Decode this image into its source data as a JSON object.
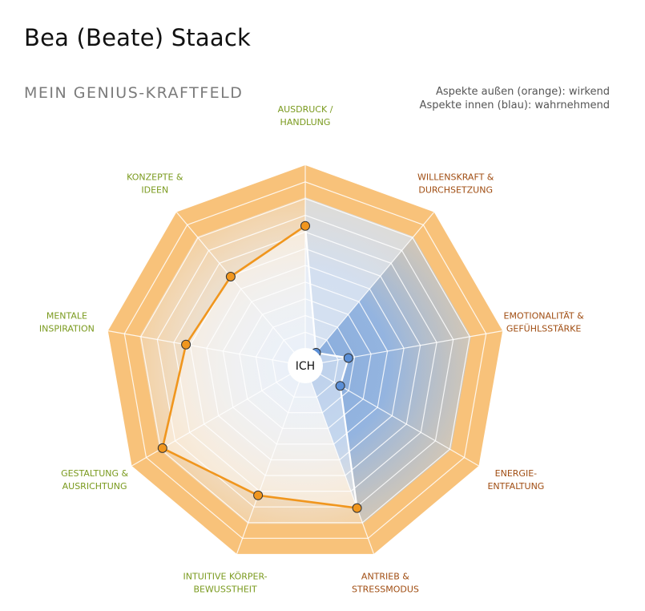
{
  "header": {
    "name": "Bea (Beate) Staack",
    "subtitle": "MEIN GENIUS-KRAFTFELD"
  },
  "legend": {
    "outer": "Aspekte außen (orange): wirkend",
    "inner": "Aspekte innen (blau): wahrnehmend"
  },
  "center_label": "ICH",
  "colors": {
    "outer_band": "#f8c27a",
    "line_orange": "#f0961e",
    "dot_blue": "#5b8fd6",
    "label_green": "#7a9a1e",
    "label_brown": "#a04d12"
  },
  "chart_data": {
    "type": "radar",
    "axes": [
      {
        "label": [
          "AUSDRUCK /",
          "HANDLUNG"
        ],
        "group": "wirkend"
      },
      {
        "label": [
          "WILLENSKRAFT &",
          "DURCHSETZUNG"
        ],
        "group": "wahrnehmend"
      },
      {
        "label": [
          "EMOTIONALITÄT &",
          "GEFÜHLSSTÄRKE"
        ],
        "group": "wahrnehmend"
      },
      {
        "label": [
          "ENERGIE-",
          "ENTFALTUNG"
        ],
        "group": "wahrnehmend"
      },
      {
        "label": [
          "ANTRIEB &",
          "STRESSMODUS"
        ],
        "group": "wahrnehmend"
      },
      {
        "label": [
          "INTUITIVE KÖRPER-",
          "BEWUSSTHEIT"
        ],
        "group": "wirkend"
      },
      {
        "label": [
          "GESTALTUNG &",
          "AUSRICHTUNG"
        ],
        "group": "wirkend"
      },
      {
        "label": [
          "MENTALE",
          "INSPIRATION"
        ],
        "group": "wirkend"
      },
      {
        "label": [
          "KONZEPTE &",
          "IDEEN"
        ],
        "group": "wirkend"
      }
    ],
    "scale_levels": 10,
    "series": [
      {
        "values": [
          8.3,
          1.0,
          2.6,
          2.4,
          9.0,
          8.2,
          9.8,
          7.2,
          6.9
        ],
        "point_colors": [
          "orange",
          "blue",
          "blue",
          "blue",
          "orange",
          "orange",
          "orange",
          "orange",
          "orange"
        ]
      }
    ]
  }
}
